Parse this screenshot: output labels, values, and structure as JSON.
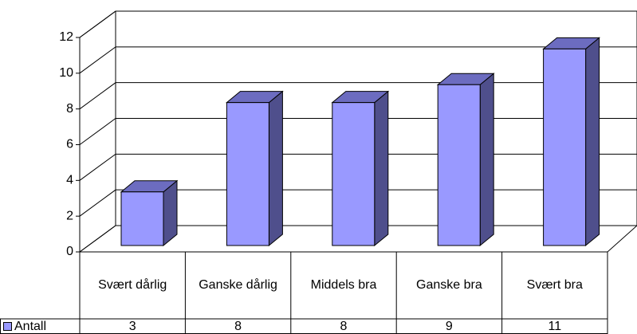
{
  "chart_data": {
    "type": "bar3d",
    "categories": [
      "Svært dårlig",
      "Ganske dårlig",
      "Middels bra",
      "Ganske bra",
      "Svært bra"
    ],
    "series": [
      {
        "name": "Antall",
        "color": "#9999ff",
        "values": [
          3,
          8,
          8,
          9,
          11
        ]
      }
    ],
    "ylim": [
      0,
      12
    ],
    "yticks": [
      0,
      2,
      4,
      6,
      8,
      10,
      12
    ],
    "grid": true,
    "legend": "table"
  }
}
